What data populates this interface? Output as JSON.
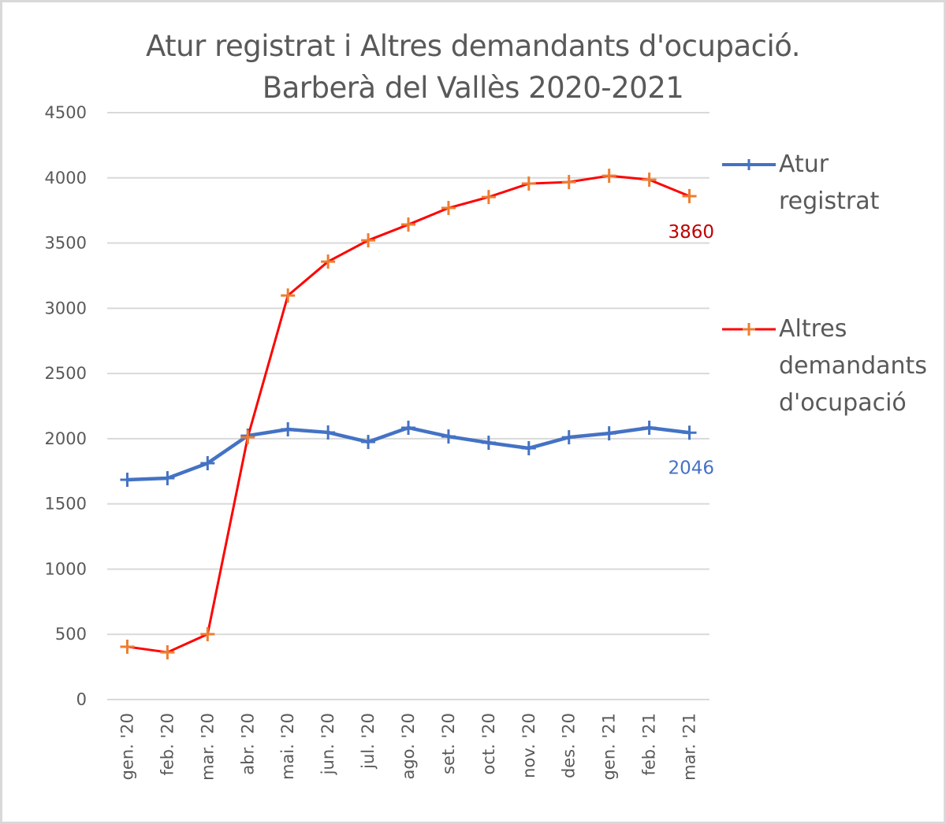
{
  "chart_data": {
    "type": "line",
    "title": "Atur registrat i Altres demandants d'ocupació. Barberà del Vallès 2020-2021",
    "title_lines": [
      "Atur registrat i Altres demandants d'ocupació.",
      "Barberà del Vallès 2020-2021"
    ],
    "xlabel": "",
    "ylabel": "",
    "ylim": [
      0,
      4500
    ],
    "yticks": [
      "0",
      "500",
      "1000",
      "1500",
      "2000",
      "2500",
      "3000",
      "3500",
      "4000",
      "4500"
    ],
    "grid": true,
    "legend_position": "right",
    "categories": [
      "gen. '20",
      "feb. '20",
      "mar. '20",
      "abr. '20",
      "mai. '20",
      "jun. '20",
      "jul. '20",
      "ago. '20",
      "set. '20",
      "oct. '20",
      "nov. '20",
      "des. '20",
      "gen. '21",
      "feb. '21",
      "mar. '21"
    ],
    "series": [
      {
        "name": "Atur registrat",
        "legend_lines": [
          "Atur",
          "registrat"
        ],
        "color": "#4472c4",
        "marker_color": "#4472c4",
        "values": [
          1685,
          1697,
          1812,
          2023,
          2072,
          2048,
          1975,
          2084,
          2017,
          1969,
          1927,
          2011,
          2041,
          2084,
          2046
        ],
        "end_label": "2046",
        "label_color": "#4472c4"
      },
      {
        "name": "Altres demandants d'ocupació",
        "legend_lines": [
          "Altres",
          "demandants",
          "d'ocupació"
        ],
        "color": "#ff0000",
        "marker_color": "#ed7d31",
        "values": [
          405,
          362,
          501,
          2011,
          3098,
          3358,
          3521,
          3642,
          3769,
          3853,
          3956,
          3968,
          4016,
          3986,
          3860
        ],
        "end_label": "3860",
        "label_color": "#c00000"
      }
    ]
  }
}
